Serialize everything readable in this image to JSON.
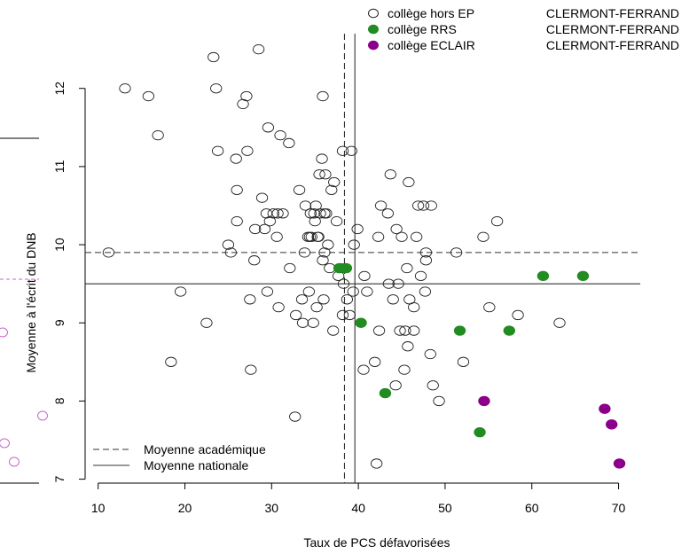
{
  "chart_data": {
    "type": "scatter",
    "xlabel": "Taux de PCS défavorisées",
    "ylabel": "Moyenne à l'écrit du DNB",
    "xlim": [
      8.5,
      72.5
    ],
    "ylim": [
      6.95,
      12.7
    ],
    "xticks": [
      "10",
      "20",
      "30",
      "40",
      "50",
      "60",
      "70"
    ],
    "yticks": [
      "7",
      "8",
      "9",
      "10",
      "11",
      "12"
    ],
    "reference_lines": [
      {
        "name": "Moyenne académique",
        "style": "dashed",
        "x": 38.4,
        "y": 9.9
      },
      {
        "name": "Moyenne nationale",
        "style": "solid",
        "x": 39.6,
        "y": 9.5
      }
    ],
    "legend_top": {
      "placement": "top-right",
      "entries": [
        {
          "key": "hors",
          "group": "collège hors EP",
          "city": "CLERMONT-FERRAND"
        },
        {
          "key": "rrs",
          "group": "collège RRS",
          "city": "CLERMONT-FERRAND"
        },
        {
          "key": "eclair",
          "group": "collège ECLAIR",
          "city": "CLERMONT-FERRAND"
        }
      ]
    },
    "legend_bottom": {
      "placement": "bottom-left",
      "entries": [
        {
          "label": "Moyenne académique",
          "style": "dashed"
        },
        {
          "label": "Moyenne nationale",
          "style": "solid"
        }
      ]
    },
    "colors": {
      "rrs": "#228B22",
      "eclair": "#8B008B",
      "hors": "#000000"
    },
    "series": [
      {
        "key": "hors",
        "name": "collège hors EP CLERMONT-FERRAND",
        "points": [
          [
            11.2,
            9.9
          ],
          [
            13.1,
            12.0
          ],
          [
            15.8,
            11.9
          ],
          [
            16.9,
            11.4
          ],
          [
            18.4,
            8.5
          ],
          [
            19.5,
            9.4
          ],
          [
            22.5,
            9.0
          ],
          [
            23.3,
            12.4
          ],
          [
            23.6,
            12.0
          ],
          [
            23.8,
            11.2
          ],
          [
            25.0,
            10.0
          ],
          [
            25.3,
            9.9
          ],
          [
            25.9,
            11.1
          ],
          [
            26.0,
            10.7
          ],
          [
            26.0,
            10.3
          ],
          [
            26.7,
            11.8
          ],
          [
            27.1,
            11.9
          ],
          [
            27.2,
            11.2
          ],
          [
            27.5,
            9.3
          ],
          [
            27.6,
            8.4
          ],
          [
            28.0,
            9.8
          ],
          [
            28.1,
            10.2
          ],
          [
            28.5,
            12.5
          ],
          [
            28.9,
            10.6
          ],
          [
            29.2,
            10.2
          ],
          [
            29.4,
            10.4
          ],
          [
            29.5,
            9.4
          ],
          [
            29.6,
            11.5
          ],
          [
            29.8,
            10.3
          ],
          [
            30.2,
            10.4
          ],
          [
            30.6,
            10.1
          ],
          [
            30.7,
            10.4
          ],
          [
            30.8,
            9.2
          ],
          [
            31.0,
            11.4
          ],
          [
            31.3,
            10.4
          ],
          [
            32.0,
            11.3
          ],
          [
            32.1,
            9.7
          ],
          [
            32.7,
            7.8
          ],
          [
            32.8,
            9.1
          ],
          [
            33.2,
            10.7
          ],
          [
            33.5,
            9.3
          ],
          [
            33.6,
            9.0
          ],
          [
            33.8,
            9.9
          ],
          [
            33.9,
            10.5
          ],
          [
            34.2,
            10.1
          ],
          [
            34.3,
            9.4
          ],
          [
            34.4,
            10.1
          ],
          [
            34.5,
            10.4
          ],
          [
            34.6,
            10.1
          ],
          [
            34.8,
            9.0
          ],
          [
            34.9,
            10.4
          ],
          [
            35.0,
            10.3
          ],
          [
            35.1,
            10.5
          ],
          [
            35.2,
            9.2
          ],
          [
            35.3,
            10.1
          ],
          [
            35.4,
            10.1
          ],
          [
            35.5,
            10.9
          ],
          [
            35.6,
            10.4
          ],
          [
            35.8,
            11.1
          ],
          [
            35.9,
            11.9
          ],
          [
            35.9,
            9.8
          ],
          [
            36.0,
            9.3
          ],
          [
            36.1,
            9.9
          ],
          [
            36.1,
            10.4
          ],
          [
            36.2,
            10.9
          ],
          [
            36.3,
            10.4
          ],
          [
            36.5,
            10.0
          ],
          [
            36.7,
            9.7
          ],
          [
            36.9,
            10.7
          ],
          [
            37.1,
            8.9
          ],
          [
            37.2,
            10.8
          ],
          [
            37.5,
            10.3
          ],
          [
            37.7,
            9.6
          ],
          [
            37.9,
            9.7
          ],
          [
            38.2,
            11.2
          ],
          [
            38.2,
            9.1
          ],
          [
            38.3,
            9.5
          ],
          [
            38.5,
            9.7
          ],
          [
            38.7,
            9.3
          ],
          [
            39.0,
            9.1
          ],
          [
            39.2,
            11.2
          ],
          [
            39.4,
            9.4
          ],
          [
            39.5,
            10.0
          ],
          [
            39.9,
            10.2
          ],
          [
            40.6,
            8.4
          ],
          [
            40.7,
            9.6
          ],
          [
            41.0,
            9.4
          ],
          [
            41.9,
            8.5
          ],
          [
            42.1,
            7.2
          ],
          [
            42.3,
            10.1
          ],
          [
            42.4,
            8.9
          ],
          [
            42.6,
            10.5
          ],
          [
            43.4,
            10.4
          ],
          [
            43.5,
            9.5
          ],
          [
            43.7,
            10.9
          ],
          [
            44.0,
            9.3
          ],
          [
            44.3,
            8.2
          ],
          [
            44.4,
            10.2
          ],
          [
            44.6,
            9.5
          ],
          [
            44.8,
            8.9
          ],
          [
            45.0,
            10.1
          ],
          [
            45.3,
            8.4
          ],
          [
            45.4,
            8.9
          ],
          [
            45.7,
            8.7
          ],
          [
            45.8,
            10.8
          ],
          [
            45.6,
            9.7
          ],
          [
            45.9,
            9.3
          ],
          [
            46.4,
            8.9
          ],
          [
            46.4,
            9.2
          ],
          [
            46.7,
            10.1
          ],
          [
            46.9,
            10.5
          ],
          [
            47.2,
            9.6
          ],
          [
            47.5,
            10.5
          ],
          [
            47.7,
            9.4
          ],
          [
            47.8,
            9.8
          ],
          [
            47.8,
            9.9
          ],
          [
            48.4,
            10.5
          ],
          [
            48.3,
            8.6
          ],
          [
            48.6,
            8.2
          ],
          [
            49.3,
            8.0
          ],
          [
            51.3,
            9.9
          ],
          [
            52.1,
            8.5
          ],
          [
            54.4,
            10.1
          ],
          [
            55.1,
            9.2
          ],
          [
            56.0,
            10.3
          ],
          [
            58.4,
            9.1
          ],
          [
            63.2,
            9.0
          ]
        ]
      },
      {
        "key": "rrs",
        "name": "collège RRS CLERMONT-FERRAND",
        "points": [
          [
            37.8,
            9.7
          ],
          [
            38.6,
            9.7
          ],
          [
            40.3,
            9.0
          ],
          [
            43.1,
            8.1
          ],
          [
            51.7,
            8.9
          ],
          [
            54.0,
            7.6
          ],
          [
            57.4,
            8.9
          ],
          [
            61.3,
            9.6
          ],
          [
            65.9,
            9.6
          ]
        ]
      },
      {
        "key": "eclair",
        "name": "collège ECLAIR CLERMONT-FERRAND",
        "points": [
          [
            54.5,
            8.0
          ],
          [
            68.4,
            7.9
          ],
          [
            69.2,
            7.7
          ],
          [
            70.1,
            7.2
          ]
        ]
      }
    ],
    "left_panel_fragment": {
      "reference_color": "#CC66CC",
      "points": [
        [
          7.0,
          9.56
        ],
        [
          8.8,
          8.9
        ],
        [
          20.7,
          7.8
        ],
        [
          5.6,
          7.47
        ],
        [
          16.0,
          7.22
        ]
      ],
      "line_y": [
        8.45,
        9.56,
        6.95
      ]
    }
  }
}
